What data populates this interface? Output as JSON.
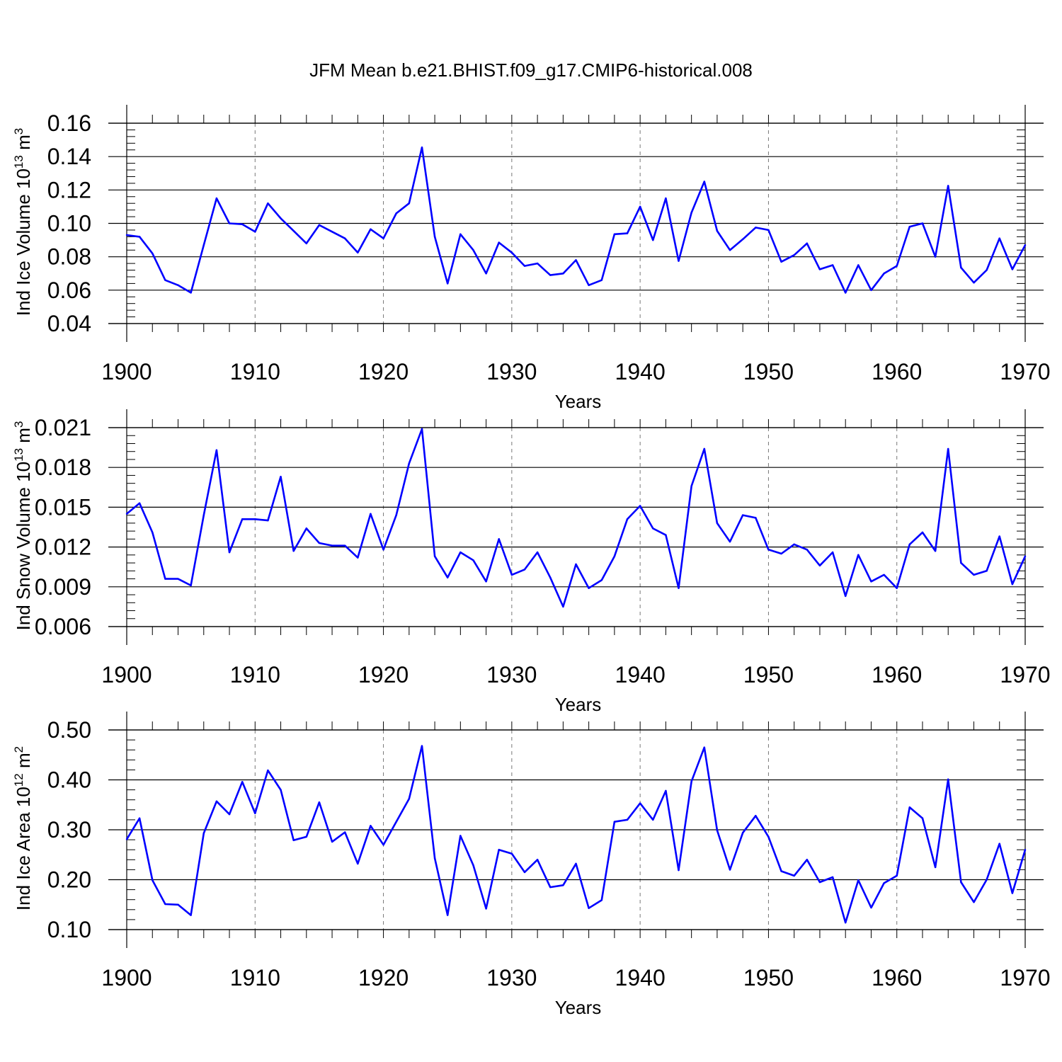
{
  "title": "JFM Mean b.e21.BHIST.f09_g17.CMIP6-historical.008",
  "colors": {
    "line": "#0000ff",
    "axis": "#000000",
    "grid": "#777777"
  },
  "chart_data": [
    {
      "type": "line",
      "xlabel": "Years",
      "ylabel": "Ind Ice Volume 10^13 m^3",
      "ylabel_base": "Ind Ice Volume 10",
      "ylabel_exp": "13",
      "ylabel_unit": "m",
      "ylabel_unit_exp": "3",
      "xlim": [
        1900,
        1970
      ],
      "ylim": [
        0.04,
        0.16
      ],
      "x_ticks": [
        "1900",
        "1910",
        "1920",
        "1930",
        "1940",
        "1950",
        "1960",
        "1970"
      ],
      "y_ticks": [
        "0.04",
        "0.06",
        "0.08",
        "0.10",
        "0.12",
        "0.14",
        "0.16"
      ],
      "grid": "vertical dashed at major x ticks",
      "x_start": 1900,
      "values": [
        0.093,
        0.092,
        0.082,
        0.066,
        0.063,
        0.0585,
        0.087,
        0.115,
        0.1,
        0.0995,
        0.095,
        0.112,
        0.103,
        0.0955,
        0.088,
        0.099,
        0.095,
        0.091,
        0.0825,
        0.0965,
        0.091,
        0.106,
        0.112,
        0.1455,
        0.092,
        0.064,
        0.0935,
        0.084,
        0.07,
        0.0885,
        0.0825,
        0.0745,
        0.076,
        0.069,
        0.07,
        0.078,
        0.063,
        0.066,
        0.0935,
        0.094,
        0.11,
        0.09,
        0.115,
        0.0775,
        0.1065,
        0.125,
        0.0955,
        0.084,
        0.0905,
        0.0975,
        0.096,
        0.077,
        0.081,
        0.088,
        0.0725,
        0.075,
        0.0585,
        0.075,
        0.06,
        0.07,
        0.0745,
        0.098,
        0.1,
        0.08,
        0.1225,
        0.0735,
        0.0645,
        0.072,
        0.091,
        0.0725,
        0.087
      ]
    },
    {
      "type": "line",
      "xlabel": "Years",
      "ylabel": "Ind Snow Volume 10^13 m^3",
      "ylabel_base": "Ind Snow Volume 10",
      "ylabel_exp": "13",
      "ylabel_unit": "m",
      "ylabel_unit_exp": "3",
      "xlim": [
        1900,
        1970
      ],
      "ylim": [
        0.006,
        0.021
      ],
      "x_ticks": [
        "1900",
        "1910",
        "1920",
        "1930",
        "1940",
        "1950",
        "1960",
        "1970"
      ],
      "y_ticks": [
        "0.006",
        "0.009",
        "0.012",
        "0.015",
        "0.018",
        "0.021"
      ],
      "grid": "vertical dashed at major x ticks",
      "x_start": 1900,
      "values": [
        0.0145,
        0.0153,
        0.0131,
        0.0096,
        0.0096,
        0.0091,
        0.0144,
        0.0193,
        0.0116,
        0.0141,
        0.0141,
        0.014,
        0.0173,
        0.0117,
        0.0134,
        0.0123,
        0.0121,
        0.0121,
        0.0112,
        0.0145,
        0.0118,
        0.0144,
        0.0183,
        0.0209,
        0.0113,
        0.0097,
        0.0116,
        0.011,
        0.0094,
        0.0126,
        0.0099,
        0.0103,
        0.0116,
        0.0097,
        0.0075,
        0.0107,
        0.0089,
        0.0095,
        0.0113,
        0.0141,
        0.0151,
        0.0134,
        0.0129,
        0.0089,
        0.0166,
        0.0194,
        0.0138,
        0.0124,
        0.0144,
        0.0142,
        0.0118,
        0.0115,
        0.0122,
        0.0118,
        0.0106,
        0.0116,
        0.0083,
        0.0114,
        0.0094,
        0.0099,
        0.0089,
        0.0122,
        0.0131,
        0.0117,
        0.0194,
        0.0108,
        0.0099,
        0.0102,
        0.0128,
        0.0092,
        0.0113
      ]
    },
    {
      "type": "line",
      "xlabel": "Years",
      "ylabel": "Ind Ice Area 10^12 m^2",
      "ylabel_base": "Ind Ice Area 10",
      "ylabel_exp": "12",
      "ylabel_unit": "m",
      "ylabel_unit_exp": "2",
      "xlim": [
        1900,
        1970
      ],
      "ylim": [
        0.1,
        0.5
      ],
      "x_ticks": [
        "1900",
        "1910",
        "1920",
        "1930",
        "1940",
        "1950",
        "1960",
        "1970"
      ],
      "y_ticks": [
        "0.10",
        "0.20",
        "0.30",
        "0.40",
        "0.50"
      ],
      "grid": "vertical dashed at major x ticks",
      "x_start": 1900,
      "values": [
        0.281,
        0.323,
        0.199,
        0.151,
        0.15,
        0.129,
        0.293,
        0.357,
        0.331,
        0.396,
        0.333,
        0.419,
        0.38,
        0.279,
        0.286,
        0.355,
        0.276,
        0.295,
        0.232,
        0.308,
        0.27,
        0.316,
        0.362,
        0.468,
        0.243,
        0.129,
        0.288,
        0.229,
        0.142,
        0.26,
        0.252,
        0.215,
        0.24,
        0.185,
        0.189,
        0.232,
        0.143,
        0.159,
        0.316,
        0.32,
        0.353,
        0.32,
        0.378,
        0.219,
        0.397,
        0.465,
        0.299,
        0.22,
        0.294,
        0.328,
        0.286,
        0.217,
        0.208,
        0.24,
        0.195,
        0.205,
        0.114,
        0.199,
        0.144,
        0.193,
        0.208,
        0.345,
        0.323,
        0.225,
        0.401,
        0.195,
        0.155,
        0.2,
        0.272,
        0.173,
        0.26
      ]
    }
  ]
}
